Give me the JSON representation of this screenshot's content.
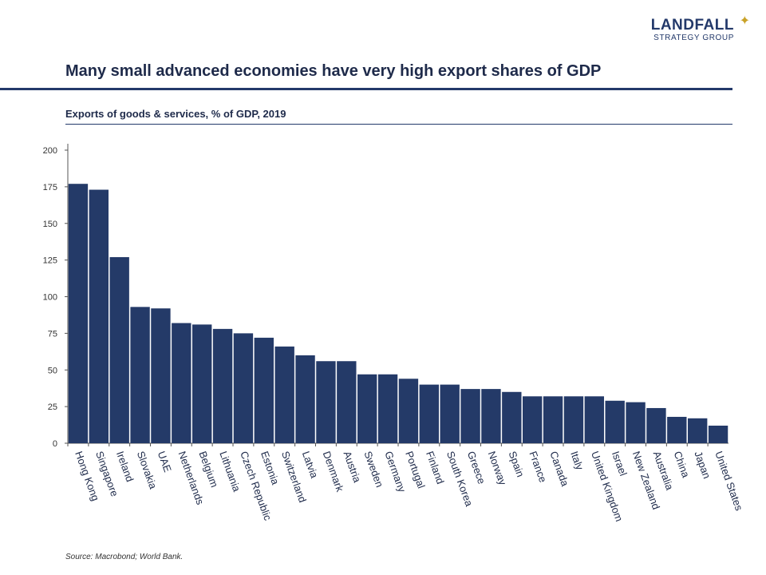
{
  "logo": {
    "main": "LANDFALL",
    "sub": "STRATEGY GROUP",
    "star": "✦"
  },
  "header": {
    "title": "Many small advanced economies have very high export shares of GDP",
    "subtitle": "Exports of goods & services, % of GDP, 2019"
  },
  "source": "Source: Macrobond;  World Bank.",
  "colors": {
    "bar": "#243a68",
    "accent": "#c9a227"
  },
  "chart_data": {
    "type": "bar",
    "title": "Exports of goods & services, % of GDP, 2019",
    "xlabel": "",
    "ylabel": "",
    "ylim": [
      0,
      200
    ],
    "yticks": [
      0,
      25,
      50,
      75,
      100,
      125,
      150,
      175,
      200
    ],
    "grid": false,
    "categories": [
      "Hong Kong",
      "Singapore",
      "Ireland",
      "Slovakia",
      "UAE",
      "Netherlands",
      "Belgium",
      "Lithuania",
      "Czech Republic",
      "Estonia",
      "Switzerland",
      "Latvia",
      "Denmark",
      "Austria",
      "Sweden",
      "Germany",
      "Portugal",
      "Finland",
      "South Korea",
      "Greece",
      "Norway",
      "Spain",
      "France",
      "Canada",
      "Italy",
      "United Kingdom",
      "Israel",
      "New Zealand",
      "Australia",
      "China",
      "Japan",
      "United States"
    ],
    "values": [
      177,
      173,
      127,
      93,
      92,
      82,
      81,
      78,
      75,
      72,
      66,
      60,
      56,
      56,
      47,
      47,
      44,
      40,
      40,
      37,
      37,
      35,
      32,
      32,
      32,
      32,
      29,
      28,
      24,
      18,
      17,
      12
    ]
  }
}
